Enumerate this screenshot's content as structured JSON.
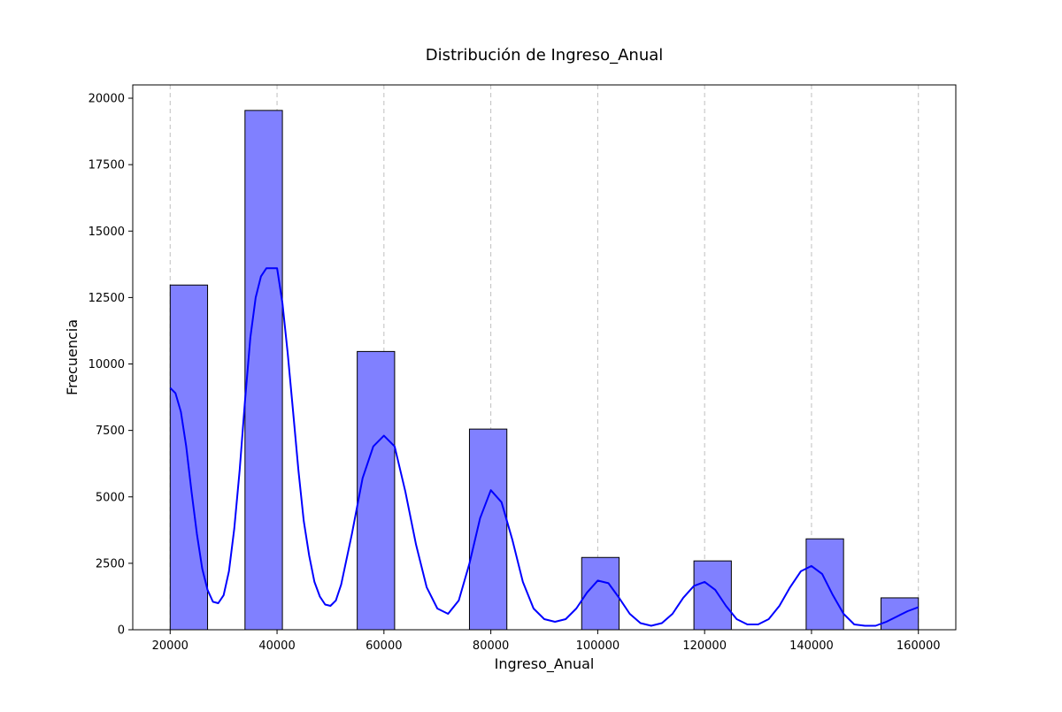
{
  "chart_data": {
    "type": "bar",
    "title": "Distribución de Ingreso_Anual",
    "xlabel": "Ingreso_Anual",
    "ylabel": "Frecuencia",
    "xlim": [
      13000,
      167000
    ],
    "ylim": [
      0,
      20500
    ],
    "x_ticks": [
      20000,
      40000,
      60000,
      80000,
      100000,
      120000,
      140000,
      160000
    ],
    "y_ticks": [
      0,
      2500,
      5000,
      7500,
      10000,
      12500,
      15000,
      17500,
      20000
    ],
    "grid": {
      "x": true,
      "y": false,
      "style": "dashed"
    },
    "bar_color": "#8080ff",
    "bar_edge_color": "#000000",
    "kde_color": "#0000ff",
    "bins": [
      {
        "x0": 20000,
        "x1": 27000,
        "count": 12970
      },
      {
        "x0": 34000,
        "x1": 41000,
        "count": 19540
      },
      {
        "x0": 55000,
        "x1": 62000,
        "count": 10470
      },
      {
        "x0": 76000,
        "x1": 83000,
        "count": 7550
      },
      {
        "x0": 97000,
        "x1": 104000,
        "count": 2720
      },
      {
        "x0": 118000,
        "x1": 125000,
        "count": 2590
      },
      {
        "x0": 139000,
        "x1": 146000,
        "count": 3420
      },
      {
        "x0": 153000,
        "x1": 160000,
        "count": 1200
      }
    ],
    "kde_curve": {
      "x": [
        20000,
        21000,
        22000,
        23000,
        24000,
        25000,
        26000,
        27000,
        28000,
        29000,
        30000,
        31000,
        32000,
        33000,
        34000,
        35000,
        36000,
        37000,
        38000,
        39000,
        40000,
        41000,
        42000,
        43000,
        44000,
        45000,
        46000,
        47000,
        48000,
        49000,
        50000,
        51000,
        52000,
        54000,
        56000,
        58000,
        60000,
        62000,
        64000,
        66000,
        68000,
        70000,
        72000,
        74000,
        76000,
        78000,
        80000,
        82000,
        84000,
        86000,
        88000,
        90000,
        92000,
        94000,
        96000,
        98000,
        100000,
        102000,
        104000,
        106000,
        108000,
        110000,
        112000,
        114000,
        116000,
        118000,
        120000,
        122000,
        124000,
        126000,
        128000,
        130000,
        132000,
        134000,
        136000,
        138000,
        140000,
        142000,
        144000,
        146000,
        148000,
        150000,
        152000,
        154000,
        156000,
        158000,
        160000
      ],
      "y": [
        9100,
        8900,
        8200,
        6900,
        5200,
        3600,
        2300,
        1500,
        1050,
        1000,
        1300,
        2200,
        3800,
        6000,
        8600,
        11000,
        12500,
        13300,
        13600,
        13600,
        13600,
        12300,
        10400,
        8200,
        6000,
        4100,
        2800,
        1800,
        1250,
        950,
        900,
        1100,
        1700,
        3600,
        5700,
        6900,
        7300,
        6900,
        5200,
        3200,
        1600,
        800,
        600,
        1100,
        2500,
        4200,
        5250,
        4800,
        3400,
        1800,
        800,
        400,
        300,
        400,
        800,
        1400,
        1850,
        1750,
        1200,
        600,
        250,
        150,
        250,
        600,
        1200,
        1650,
        1800,
        1500,
        900,
        400,
        200,
        200,
        400,
        900,
        1600,
        2200,
        2400,
        2100,
        1300,
        600,
        200,
        150,
        150,
        300,
        500,
        700,
        850
      ]
    }
  }
}
